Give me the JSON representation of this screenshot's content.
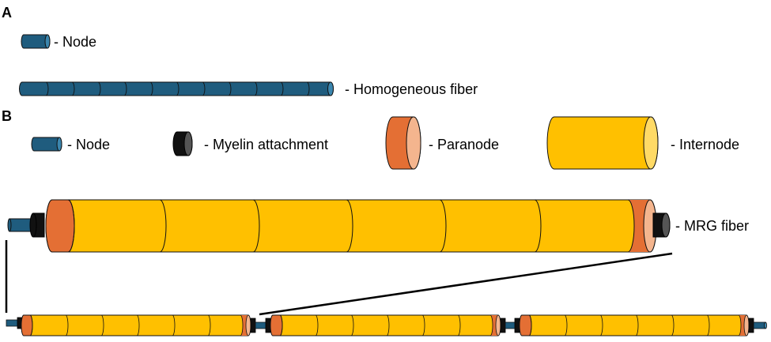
{
  "panel_a": {
    "label": "A",
    "node_label": "- Node",
    "fiber_label": "- Homogeneous fiber"
  },
  "panel_b": {
    "label": "B",
    "node_label": "- Node",
    "myelin_label": "- Myelin attachment",
    "paranode_label": "- Paranode",
    "internode_label": "- Internode",
    "mrg_label": "- MRG fiber"
  },
  "colors": {
    "node": "#1F5C7E",
    "node_cap": "#3B86AE",
    "myelin": "#111111",
    "myelin_cap": "#555555",
    "paranode": "#E46F34",
    "paranode_cap": "#F4B58E",
    "internode": "#FFC000",
    "internode_cap": "#FFDA66",
    "outline": "#111111"
  }
}
